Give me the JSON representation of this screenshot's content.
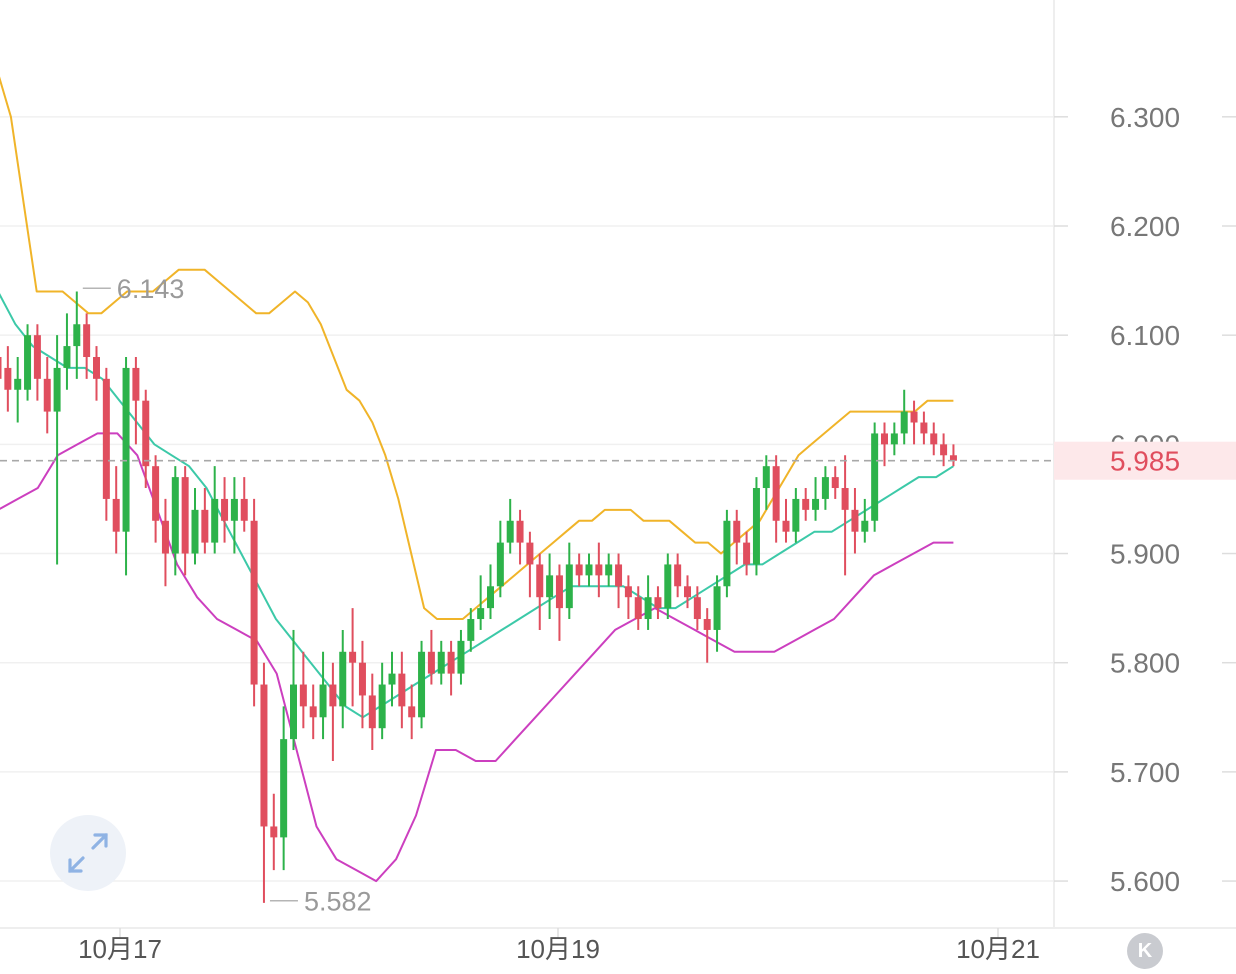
{
  "chart_data": {
    "type": "candlestick",
    "title": "",
    "x_tick_labels": [
      "10月17",
      "10月19",
      "10月21"
    ],
    "y_ticks": [
      5.6,
      5.7,
      5.8,
      5.9,
      6.0,
      6.1,
      6.2,
      6.3
    ],
    "y_tick_labels": [
      "5.600",
      "5.700",
      "5.800",
      "5.900",
      "6.000",
      "6.100",
      "6.200",
      "6.300"
    ],
    "ylim": [
      5.557,
      6.407
    ],
    "grid": true,
    "last_price": 5.985,
    "last_price_label": "5.985",
    "annotations": [
      {
        "type": "max",
        "label": "6.143",
        "value": 6.143
      },
      {
        "type": "min",
        "label": "5.582",
        "value": 5.582
      }
    ],
    "candles": [
      [
        6.08,
        6.06,
        6.11,
        6.04
      ],
      [
        6.07,
        6.05,
        6.09,
        6.03
      ],
      [
        6.05,
        6.06,
        6.08,
        6.02
      ],
      [
        6.05,
        6.1,
        6.11,
        6.04
      ],
      [
        6.1,
        6.06,
        6.11,
        6.04
      ],
      [
        6.06,
        6.03,
        6.08,
        6.01
      ],
      [
        6.03,
        6.07,
        6.1,
        5.89
      ],
      [
        6.07,
        6.09,
        6.12,
        6.05
      ],
      [
        6.09,
        6.11,
        6.14,
        6.06
      ],
      [
        6.11,
        6.08,
        6.12,
        6.06
      ],
      [
        6.08,
        6.06,
        6.09,
        6.04
      ],
      [
        6.06,
        5.95,
        6.07,
        5.93
      ],
      [
        5.95,
        5.92,
        5.98,
        5.9
      ],
      [
        5.92,
        6.07,
        6.08,
        5.88
      ],
      [
        6.07,
        6.04,
        6.08,
        6.0
      ],
      [
        6.04,
        5.98,
        6.05,
        5.96
      ],
      [
        5.98,
        5.93,
        5.99,
        5.91
      ],
      [
        5.93,
        5.9,
        5.95,
        5.87
      ],
      [
        5.9,
        5.97,
        5.98,
        5.88
      ],
      [
        5.97,
        5.9,
        5.98,
        5.88
      ],
      [
        5.9,
        5.94,
        5.96,
        5.89
      ],
      [
        5.94,
        5.91,
        5.96,
        5.9
      ],
      [
        5.91,
        5.95,
        5.98,
        5.9
      ],
      [
        5.95,
        5.93,
        5.97,
        5.91
      ],
      [
        5.93,
        5.95,
        5.97,
        5.9
      ],
      [
        5.95,
        5.93,
        5.97,
        5.92
      ],
      [
        5.93,
        5.78,
        5.95,
        5.76
      ],
      [
        5.78,
        5.65,
        5.8,
        5.58
      ],
      [
        5.65,
        5.64,
        5.68,
        5.61
      ],
      [
        5.64,
        5.73,
        5.76,
        5.61
      ],
      [
        5.73,
        5.78,
        5.83,
        5.72
      ],
      [
        5.78,
        5.76,
        5.81,
        5.74
      ],
      [
        5.76,
        5.75,
        5.78,
        5.73
      ],
      [
        5.75,
        5.78,
        5.81,
        5.73
      ],
      [
        5.78,
        5.76,
        5.8,
        5.71
      ],
      [
        5.76,
        5.81,
        5.83,
        5.74
      ],
      [
        5.81,
        5.8,
        5.85,
        5.76
      ],
      [
        5.8,
        5.77,
        5.82,
        5.74
      ],
      [
        5.77,
        5.74,
        5.79,
        5.72
      ],
      [
        5.74,
        5.78,
        5.8,
        5.73
      ],
      [
        5.78,
        5.79,
        5.81,
        5.76
      ],
      [
        5.79,
        5.76,
        5.81,
        5.74
      ],
      [
        5.76,
        5.75,
        5.78,
        5.73
      ],
      [
        5.75,
        5.81,
        5.82,
        5.74
      ],
      [
        5.81,
        5.79,
        5.83,
        5.78
      ],
      [
        5.79,
        5.81,
        5.82,
        5.78
      ],
      [
        5.81,
        5.79,
        5.82,
        5.77
      ],
      [
        5.79,
        5.82,
        5.83,
        5.78
      ],
      [
        5.82,
        5.84,
        5.85,
        5.81
      ],
      [
        5.84,
        5.85,
        5.88,
        5.83
      ],
      [
        5.85,
        5.87,
        5.89,
        5.84
      ],
      [
        5.87,
        5.91,
        5.93,
        5.86
      ],
      [
        5.91,
        5.93,
        5.95,
        5.9
      ],
      [
        5.93,
        5.91,
        5.94,
        5.89
      ],
      [
        5.91,
        5.89,
        5.92,
        5.86
      ],
      [
        5.89,
        5.86,
        5.9,
        5.83
      ],
      [
        5.86,
        5.88,
        5.9,
        5.84
      ],
      [
        5.88,
        5.85,
        5.89,
        5.82
      ],
      [
        5.85,
        5.89,
        5.91,
        5.84
      ],
      [
        5.89,
        5.88,
        5.9,
        5.87
      ],
      [
        5.88,
        5.89,
        5.9,
        5.87
      ],
      [
        5.89,
        5.88,
        5.91,
        5.86
      ],
      [
        5.88,
        5.89,
        5.9,
        5.87
      ],
      [
        5.89,
        5.87,
        5.9,
        5.85
      ],
      [
        5.87,
        5.86,
        5.88,
        5.84
      ],
      [
        5.86,
        5.84,
        5.87,
        5.83
      ],
      [
        5.84,
        5.86,
        5.88,
        5.83
      ],
      [
        5.86,
        5.85,
        5.87,
        5.84
      ],
      [
        5.85,
        5.89,
        5.9,
        5.84
      ],
      [
        5.89,
        5.87,
        5.9,
        5.86
      ],
      [
        5.87,
        5.86,
        5.88,
        5.85
      ],
      [
        5.86,
        5.84,
        5.87,
        5.83
      ],
      [
        5.84,
        5.83,
        5.85,
        5.8
      ],
      [
        5.83,
        5.87,
        5.88,
        5.81
      ],
      [
        5.87,
        5.93,
        5.94,
        5.86
      ],
      [
        5.93,
        5.91,
        5.94,
        5.89
      ],
      [
        5.91,
        5.89,
        5.92,
        5.88
      ],
      [
        5.89,
        5.96,
        5.97,
        5.88
      ],
      [
        5.96,
        5.98,
        5.99,
        5.94
      ],
      [
        5.98,
        5.93,
        5.99,
        5.91
      ],
      [
        5.93,
        5.92,
        5.95,
        5.91
      ],
      [
        5.92,
        5.95,
        5.96,
        5.91
      ],
      [
        5.95,
        5.94,
        5.96,
        5.93
      ],
      [
        5.94,
        5.95,
        5.97,
        5.93
      ],
      [
        5.95,
        5.97,
        5.98,
        5.94
      ],
      [
        5.97,
        5.96,
        5.98,
        5.95
      ],
      [
        5.96,
        5.94,
        5.99,
        5.88
      ],
      [
        5.94,
        5.92,
        5.96,
        5.9
      ],
      [
        5.92,
        5.93,
        5.95,
        5.91
      ],
      [
        5.93,
        6.01,
        6.02,
        5.92
      ],
      [
        6.01,
        6.0,
        6.02,
        5.98
      ],
      [
        6.0,
        6.01,
        6.02,
        5.99
      ],
      [
        6.01,
        6.03,
        6.05,
        6.0
      ],
      [
        6.03,
        6.02,
        6.04,
        6.0
      ],
      [
        6.02,
        6.01,
        6.03,
        6.0
      ],
      [
        6.01,
        6.0,
        6.02,
        5.99
      ],
      [
        6.0,
        5.99,
        6.01,
        5.98
      ],
      [
        5.99,
        5.985,
        6.0,
        5.98
      ]
    ],
    "series": [
      {
        "name": "",
        "role": "upper_band",
        "color": "#f0b429",
        "values": [
          6.34,
          6.3,
          6.22,
          6.14,
          6.14,
          6.14,
          6.13,
          6.12,
          6.12,
          6.13,
          6.14,
          6.14,
          6.14,
          6.15,
          6.16,
          6.16,
          6.16,
          6.15,
          6.14,
          6.13,
          6.12,
          6.12,
          6.13,
          6.14,
          6.13,
          6.11,
          6.08,
          6.05,
          6.04,
          6.02,
          5.99,
          5.95,
          5.9,
          5.85,
          5.84,
          5.84,
          5.84,
          5.85,
          5.86,
          5.87,
          5.88,
          5.89,
          5.9,
          5.91,
          5.92,
          5.93,
          5.93,
          5.94,
          5.94,
          5.94,
          5.93,
          5.93,
          5.93,
          5.92,
          5.91,
          5.91,
          5.9,
          5.91,
          5.92,
          5.93,
          5.95,
          5.97,
          5.99,
          6.0,
          6.01,
          6.02,
          6.03,
          6.03,
          6.03,
          6.03,
          6.03,
          6.03,
          6.04,
          6.04,
          6.04
        ]
      },
      {
        "name": "",
        "role": "middle_band",
        "color": "#3cc9a8",
        "values": [
          6.14,
          6.11,
          6.09,
          6.08,
          6.07,
          6.07,
          6.06,
          6.04,
          6.02,
          6.0,
          5.99,
          5.98,
          5.96,
          5.93,
          5.9,
          5.87,
          5.84,
          5.82,
          5.8,
          5.78,
          5.76,
          5.75,
          5.76,
          5.77,
          5.78,
          5.79,
          5.8,
          5.81,
          5.82,
          5.83,
          5.84,
          5.85,
          5.86,
          5.87,
          5.87,
          5.87,
          5.87,
          5.86,
          5.85,
          5.85,
          5.86,
          5.87,
          5.88,
          5.89,
          5.89,
          5.9,
          5.91,
          5.92,
          5.92,
          5.93,
          5.94,
          5.95,
          5.96,
          5.97,
          5.97,
          5.98
        ]
      },
      {
        "name": "",
        "role": "lower_band",
        "color": "#cc3fbf",
        "values": [
          5.94,
          5.95,
          5.96,
          5.99,
          6.0,
          6.01,
          6.01,
          5.99,
          5.94,
          5.89,
          5.86,
          5.84,
          5.83,
          5.82,
          5.79,
          5.72,
          5.65,
          5.62,
          5.61,
          5.6,
          5.62,
          5.66,
          5.72,
          5.72,
          5.71,
          5.71,
          5.73,
          5.75,
          5.77,
          5.79,
          5.81,
          5.83,
          5.84,
          5.85,
          5.84,
          5.83,
          5.82,
          5.81,
          5.81,
          5.81,
          5.82,
          5.83,
          5.84,
          5.86,
          5.88,
          5.89,
          5.9,
          5.91,
          5.91
        ]
      }
    ],
    "colors": {
      "up": "#2db24a",
      "down": "#e04e5e",
      "grid": "#f0f0f0",
      "axis_text": "#777777",
      "last_price": "#e04e5e",
      "last_price_bg": "#fde8ea"
    }
  },
  "controls": {
    "expand_icon": "expand-arrows-icon",
    "k_icon_glyph": "K"
  }
}
